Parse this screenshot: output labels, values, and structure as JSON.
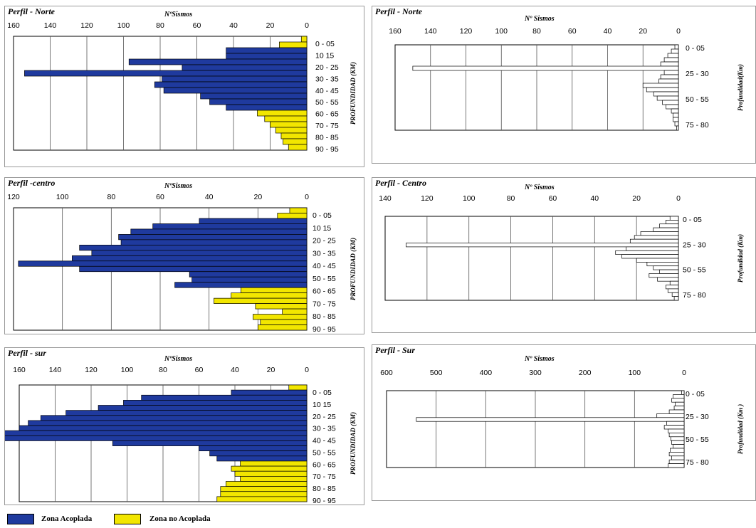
{
  "chart_data": [
    {
      "type": "bar",
      "panel": "Perfil - Norte (izquierda)",
      "title": "Perfil - Norte",
      "xlabel": "NºSismos",
      "ylabel": "PROFUNDIDAD (KM)",
      "xlim": [
        0,
        160
      ],
      "x_ticks": [
        "160",
        "140",
        "120",
        "100",
        "80",
        "60",
        "40",
        "20",
        "0"
      ],
      "depth_labels": [
        "0 - 05",
        "10  15",
        "20 - 25",
        "30 - 35",
        "40 - 45",
        "50 - 55",
        "60 - 65",
        "70 - 75",
        "80 - 85",
        "90 - 95"
      ],
      "values": [
        3,
        15,
        44,
        44,
        97,
        68,
        154,
        79,
        83,
        78,
        58,
        53,
        44,
        27,
        23,
        20,
        17,
        14,
        13,
        10
      ],
      "zone": [
        "no",
        "no",
        "a",
        "a",
        "a",
        "a",
        "a",
        "a",
        "a",
        "a",
        "a",
        "a",
        "a",
        "no",
        "no",
        "no",
        "no",
        "no",
        "no",
        "no"
      ]
    },
    {
      "type": "bar",
      "panel": "Perfil - Norte (derecha)",
      "title": "Perfil - Norte",
      "xlabel": "Nº Sismos",
      "ylabel": "Profundidad(Km)",
      "xlim": [
        0,
        160
      ],
      "x_ticks": [
        "160",
        "140",
        "120",
        "100",
        "80",
        "60",
        "40",
        "20",
        "0"
      ],
      "depth_labels": [
        "0 - 05",
        "25 - 30",
        "50 - 55",
        "75 - 80"
      ],
      "values": [
        2,
        4,
        6,
        8,
        10,
        150,
        8,
        10,
        11,
        20,
        18,
        14,
        12,
        9,
        7,
        4,
        3,
        3,
        2,
        1
      ]
    },
    {
      "type": "bar",
      "panel": "Perfil - centro (izquierda)",
      "title": "Perfil -centro",
      "xlabel": "NºSismos",
      "ylabel": "PROFUNDIDAD (KM)",
      "xlim": [
        0,
        120
      ],
      "x_ticks": [
        "120",
        "100",
        "80",
        "60",
        "40",
        "20",
        "0"
      ],
      "depth_labels": [
        "0 - 05",
        "10  15",
        "20 - 25",
        "30 - 35",
        "40 - 45",
        "50 - 55",
        "60 - 65",
        "70 - 75",
        "80 - 85",
        "90 - 95"
      ],
      "values": [
        7,
        12,
        44,
        63,
        72,
        77,
        76,
        93,
        88,
        96,
        118,
        93,
        48,
        47,
        54,
        27,
        31,
        38,
        21,
        10,
        22,
        19,
        20
      ],
      "zone": [
        "no",
        "no",
        "a",
        "a",
        "a",
        "a",
        "a",
        "a",
        "a",
        "a",
        "a",
        "a",
        "a",
        "a",
        "a",
        "no",
        "no",
        "no",
        "no",
        "no",
        "no",
        "no",
        "no"
      ]
    },
    {
      "type": "bar",
      "panel": "Perfil - Centro (derecha)",
      "title": "Perfil - Centro",
      "xlabel": "Nº Sismos",
      "ylabel": "Profundidad (Km)",
      "xlim": [
        0,
        140
      ],
      "x_ticks": [
        "140",
        "120",
        "100",
        "80",
        "60",
        "40",
        "20",
        "0"
      ],
      "depth_labels": [
        "0 - 05",
        "25 - 30",
        "50 - 55",
        "75 - 80"
      ],
      "values": [
        4,
        6,
        9,
        12,
        18,
        21,
        23,
        130,
        25,
        30,
        27,
        20,
        15,
        12,
        9,
        14,
        10,
        4,
        6,
        5,
        3,
        2
      ]
    },
    {
      "type": "bar",
      "panel": "Perfil - sur (izquierda)",
      "title": "Perfil - sur",
      "xlabel": "NºSismos",
      "ylabel": "PROFUNDIDAD (KM)",
      "xlim": [
        0,
        160
      ],
      "x_ticks": [
        "160",
        "140",
        "120",
        "100",
        "80",
        "60",
        "40",
        "20",
        "0"
      ],
      "depth_labels": [
        "0 - 05",
        "10  15",
        "20 - 25",
        "30 - 35",
        "40 - 45",
        "50 - 55",
        "60 - 65",
        "70 - 75",
        "80 - 85",
        "90 - 95"
      ],
      "values": [
        10,
        42,
        92,
        102,
        116,
        134,
        148,
        155,
        160,
        175,
        174,
        108,
        60,
        54,
        50,
        37,
        42,
        40,
        37,
        45,
        48,
        48,
        50
      ],
      "zone": [
        "no",
        "a",
        "a",
        "a",
        "a",
        "a",
        "a",
        "a",
        "a",
        "a",
        "a",
        "a",
        "a",
        "a",
        "a",
        "no",
        "no",
        "no",
        "no",
        "no",
        "no",
        "no",
        "no"
      ]
    },
    {
      "type": "bar",
      "panel": "Perfil - Sur (derecha)",
      "title": "Perfil - Sur",
      "xlabel": "Nº Sismos",
      "ylabel": "Profundidad (Km )",
      "xlim": [
        0,
        600
      ],
      "x_ticks": [
        "600",
        "500",
        "400",
        "300",
        "200",
        "100",
        "0"
      ],
      "depth_labels": [
        "0 - 05",
        "25 - 30",
        "50 - 55",
        "75 - 80"
      ],
      "values": [
        5,
        22,
        25,
        18,
        20,
        30,
        55,
        540,
        35,
        40,
        32,
        30,
        27,
        25,
        22,
        28,
        30,
        25,
        30,
        32
      ]
    }
  ],
  "legend": [
    {
      "label": "Zona Acoplada",
      "color": "#1f3a9e"
    },
    {
      "label": "Zona no Acoplada",
      "color": "#f2e600"
    }
  ],
  "colors": {
    "acoplada": "#1f3a9e",
    "no_acoplada": "#f2e600",
    "outline": "#000000"
  }
}
